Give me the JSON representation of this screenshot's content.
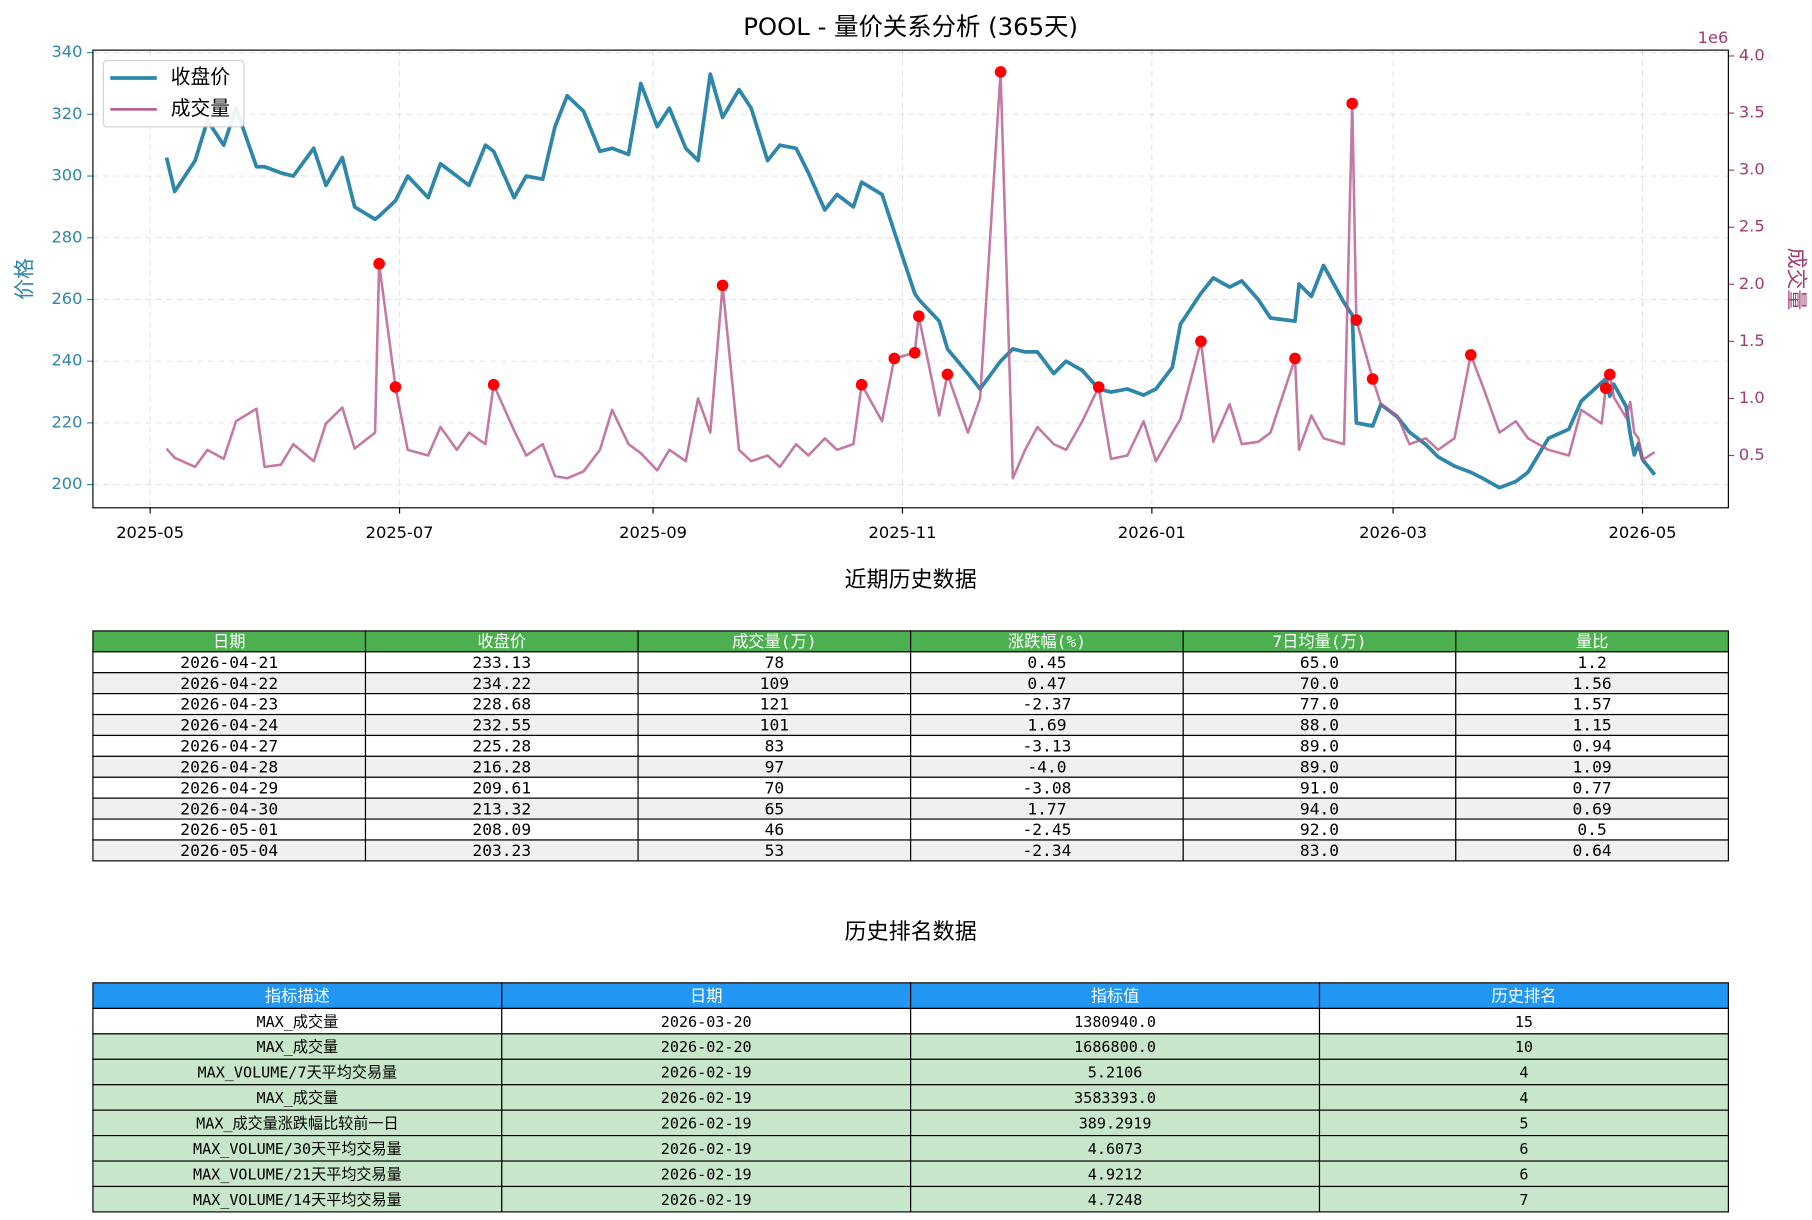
{
  "chart_data": {
    "type": "line",
    "title": "POOL - 量价关系分析 (365天)",
    "x": [
      "2025-05-05",
      "2025-05-07",
      "2025-05-12",
      "2025-05-15",
      "2025-05-19",
      "2025-05-22",
      "2025-05-27",
      "2025-05-29",
      "2025-06-02",
      "2025-06-05",
      "2025-06-10",
      "2025-06-13",
      "2025-06-17",
      "2025-06-20",
      "2025-06-25",
      "2025-06-26",
      "2025-06-30",
      "2025-07-03",
      "2025-07-08",
      "2025-07-11",
      "2025-07-15",
      "2025-07-18",
      "2025-07-22",
      "2025-07-24",
      "2025-07-29",
      "2025-08-01",
      "2025-08-05",
      "2025-08-08",
      "2025-08-11",
      "2025-08-15",
      "2025-08-19",
      "2025-08-22",
      "2025-08-26",
      "2025-08-29",
      "2025-09-02",
      "2025-09-05",
      "2025-09-09",
      "2025-09-12",
      "2025-09-15",
      "2025-09-18",
      "2025-09-22",
      "2025-09-25",
      "2025-09-29",
      "2025-10-02",
      "2025-10-06",
      "2025-10-09",
      "2025-10-13",
      "2025-10-16",
      "2025-10-20",
      "2025-10-22",
      "2025-10-27",
      "2025-10-30",
      "2025-11-04",
      "2025-11-05",
      "2025-11-10",
      "2025-11-12",
      "2025-11-17",
      "2025-11-20",
      "2025-11-25",
      "2025-11-28",
      "2025-12-01",
      "2025-12-04",
      "2025-12-08",
      "2025-12-11",
      "2025-12-15",
      "2025-12-19",
      "2025-12-22",
      "2025-12-26",
      "2025-12-30",
      "2026-01-02",
      "2026-01-06",
      "2026-01-08",
      "2026-01-13",
      "2026-01-16",
      "2026-01-20",
      "2026-01-23",
      "2026-01-27",
      "2026-01-30",
      "2026-02-05",
      "2026-02-06",
      "2026-02-09",
      "2026-02-12",
      "2026-02-17",
      "2026-02-19",
      "2026-02-20",
      "2026-02-24",
      "2026-02-26",
      "2026-03-02",
      "2026-03-05",
      "2026-03-09",
      "2026-03-12",
      "2026-03-16",
      "2026-03-20",
      "2026-03-23",
      "2026-03-27",
      "2026-03-31",
      "2026-04-03",
      "2026-04-08",
      "2026-04-13",
      "2026-04-16",
      "2026-04-21",
      "2026-04-22",
      "2026-04-23",
      "2026-04-24",
      "2026-04-27",
      "2026-04-28",
      "2026-04-29",
      "2026-04-30",
      "2026-05-01",
      "2026-05-04"
    ],
    "series": [
      {
        "name": "收盘价",
        "color": "#2e86ab",
        "values": [
          306,
          295,
          305,
          318,
          310,
          322,
          303,
          303,
          301,
          300,
          309,
          297,
          306,
          290,
          286,
          287,
          292,
          300,
          293,
          304,
          300,
          297,
          310,
          308,
          293,
          300,
          299,
          316,
          326,
          321,
          308,
          309,
          307,
          330,
          316,
          322,
          309,
          305,
          333,
          319,
          328,
          322,
          305,
          310,
          309,
          301,
          289,
          294,
          290,
          298,
          294,
          282,
          262,
          260,
          253,
          244,
          236,
          231,
          240,
          244,
          243,
          243,
          236,
          240,
          237,
          231,
          230,
          231,
          229,
          231,
          238,
          252,
          262,
          267,
          264,
          266,
          260,
          254,
          253,
          265,
          261,
          271,
          259,
          255,
          220,
          219,
          226,
          222,
          217,
          213,
          209,
          206,
          204,
          202,
          199,
          201,
          204,
          215,
          218,
          227,
          233.13,
          234.22,
          228.68,
          232.55,
          225.28,
          216.28,
          209.61,
          213.32,
          208.09,
          203.23
        ]
      },
      {
        "name": "成交量",
        "color": "#b5588c",
        "axis": "y2",
        "values": [
          560000,
          480000,
          400000,
          550000,
          470000,
          800000,
          910000,
          400000,
          420000,
          600000,
          450000,
          780000,
          920000,
          560000,
          700000,
          2180000,
          1100000,
          550000,
          500000,
          750000,
          550000,
          700000,
          600000,
          1120000,
          720000,
          500000,
          600000,
          320000,
          300000,
          360000,
          550000,
          900000,
          600000,
          520000,
          370000,
          550000,
          450000,
          1000000,
          700000,
          1990000,
          550000,
          450000,
          500000,
          400000,
          600000,
          500000,
          650000,
          550000,
          600000,
          1120000,
          800000,
          1350000,
          1400000,
          1720000,
          850000,
          1210000,
          700000,
          1000000,
          3860000,
          300000,
          550000,
          750000,
          600000,
          550000,
          800000,
          1100000,
          470000,
          500000,
          800000,
          450000,
          700000,
          820000,
          1500000,
          620000,
          950000,
          600000,
          620000,
          700000,
          1350000,
          550000,
          850000,
          650000,
          600000,
          3583393,
          1686800,
          1170000,
          950000,
          850000,
          600000,
          650000,
          550000,
          650000,
          1380940,
          1100000,
          700000,
          800000,
          650000,
          550000,
          500000,
          900000,
          780000,
          1090000,
          1210000,
          1010000,
          830000,
          970000,
          700000,
          650000,
          460000,
          530000
        ],
        "highlight": {
          "color": "#ff0000",
          "x": [
            "2025-06-26",
            "2025-06-30",
            "2025-07-24",
            "2025-09-18",
            "2025-10-22",
            "2025-10-30",
            "2025-11-04",
            "2025-11-05",
            "2025-11-12",
            "2025-11-25",
            "2025-12-19",
            "2026-01-13",
            "2026-02-05",
            "2026-02-19",
            "2026-02-20",
            "2026-02-24",
            "2026-03-20",
            "2026-04-22",
            "2026-04-23"
          ]
        }
      }
    ],
    "xlim": [
      "2025-04-17",
      "2026-05-22"
    ],
    "xticks": [
      {
        "value": "2025-05-01",
        "label": "2025-05"
      },
      {
        "value": "2025-07-01",
        "label": "2025-07"
      },
      {
        "value": "2025-09-01",
        "label": "2025-09"
      },
      {
        "value": "2025-11-01",
        "label": "2025-11"
      },
      {
        "value": "2026-01-01",
        "label": "2026-01"
      },
      {
        "value": "2026-03-01",
        "label": "2026-03"
      },
      {
        "value": "2026-05-01",
        "label": "2026-05"
      }
    ],
    "ylim": [
      192.5,
      340.8
    ],
    "yticks": [
      200,
      220,
      240,
      260,
      280,
      300,
      320,
      340
    ],
    "y2lim": [
      42000,
      4051000
    ],
    "y2ticks": [
      {
        "value": 500000,
        "label": "0.5"
      },
      {
        "value": 1000000,
        "label": "1.0"
      },
      {
        "value": 1500000,
        "label": "1.5"
      },
      {
        "value": 2000000,
        "label": "2.0"
      },
      {
        "value": 2500000,
        "label": "2.5"
      },
      {
        "value": 3000000,
        "label": "3.0"
      },
      {
        "value": 3500000,
        "label": "3.5"
      },
      {
        "value": 4000000,
        "label": "4.0"
      }
    ],
    "y2_offset_label": "1e6",
    "ylabel": "价格",
    "y2label": "成交量",
    "grid": true,
    "legend": "upper left"
  },
  "tables": [
    {
      "title": "近期历史数据",
      "header_color": "#4caf50",
      "columns": [
        "日期",
        "收盘价",
        "成交量(万)",
        "涨跌幅(%)",
        "7日均量(万)",
        "量比"
      ],
      "rows": [
        [
          "2026-04-21",
          "233.13",
          "78",
          "0.45",
          "65.0",
          "1.2"
        ],
        [
          "2026-04-22",
          "234.22",
          "109",
          "0.47",
          "70.0",
          "1.56"
        ],
        [
          "2026-04-23",
          "228.68",
          "121",
          "-2.37",
          "77.0",
          "1.57"
        ],
        [
          "2026-04-24",
          "232.55",
          "101",
          "1.69",
          "88.0",
          "1.15"
        ],
        [
          "2026-04-27",
          "225.28",
          "83",
          "-3.13",
          "89.0",
          "0.94"
        ],
        [
          "2026-04-28",
          "216.28",
          "97",
          "-4.0",
          "89.0",
          "1.09"
        ],
        [
          "2026-04-29",
          "209.61",
          "70",
          "-3.08",
          "91.0",
          "0.77"
        ],
        [
          "2026-04-30",
          "213.32",
          "65",
          "1.77",
          "94.0",
          "0.69"
        ],
        [
          "2026-05-01",
          "208.09",
          "46",
          "-2.45",
          "92.0",
          "0.5"
        ],
        [
          "2026-05-04",
          "203.23",
          "53",
          "-2.34",
          "83.0",
          "0.64"
        ]
      ]
    },
    {
      "title": "历史排名数据",
      "header_color": "#2196f3",
      "columns": [
        "指标描述",
        "日期",
        "指标值",
        "历史排名"
      ],
      "rows": [
        [
          "MAX_成交量",
          "2026-03-20",
          "1380940.0",
          "15"
        ],
        [
          "MAX_成交量",
          "2026-02-20",
          "1686800.0",
          "10"
        ],
        [
          "MAX_VOLUME/7天平均交易量",
          "2026-02-19",
          "5.2106",
          "4"
        ],
        [
          "MAX_成交量",
          "2026-02-19",
          "3583393.0",
          "4"
        ],
        [
          "MAX_成交量涨跌幅比较前一日",
          "2026-02-19",
          "389.2919",
          "5"
        ],
        [
          "MAX_VOLUME/30天平均交易量",
          "2026-02-19",
          "4.6073",
          "6"
        ],
        [
          "MAX_VOLUME/21天平均交易量",
          "2026-02-19",
          "4.9212",
          "6"
        ],
        [
          "MAX_VOLUME/14天平均交易量",
          "2026-02-19",
          "4.7248",
          "7"
        ]
      ]
    }
  ]
}
